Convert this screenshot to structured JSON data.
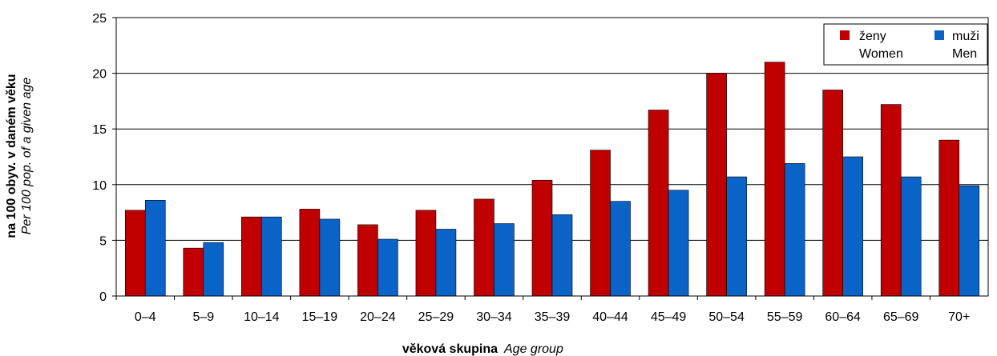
{
  "chart_data": {
    "type": "bar",
    "categories": [
      "0–4",
      "5–9",
      "10–14",
      "15–19",
      "20–24",
      "25–29",
      "30–34",
      "35–39",
      "40–44",
      "45–49",
      "50–54",
      "55–59",
      "60–64",
      "65–69",
      "70+"
    ],
    "series": [
      {
        "name": "ženy",
        "name_en": "Women",
        "color": "#c00000",
        "values": [
          7.7,
          4.3,
          7.1,
          7.8,
          6.4,
          7.7,
          8.7,
          10.4,
          13.1,
          16.7,
          20.0,
          21.0,
          18.5,
          17.2,
          14.0
        ]
      },
      {
        "name": "muži",
        "name_en": "Men",
        "color": "#0a64c8",
        "values": [
          8.6,
          4.8,
          7.1,
          6.9,
          5.1,
          6.0,
          6.5,
          7.3,
          8.5,
          9.5,
          10.7,
          11.9,
          12.5,
          10.7,
          9.9
        ]
      }
    ],
    "ylim": [
      0,
      25
    ],
    "yticks": [
      0,
      5,
      10,
      15,
      20,
      25
    ],
    "xlabel": "věková skupina",
    "xlabel_en": "Age group",
    "ylabel": "na 100 obyv. v daném věku",
    "ylabel_en": "Per 100 pop. of a given age",
    "grid": "horizontal",
    "legend_position": "top-right"
  }
}
